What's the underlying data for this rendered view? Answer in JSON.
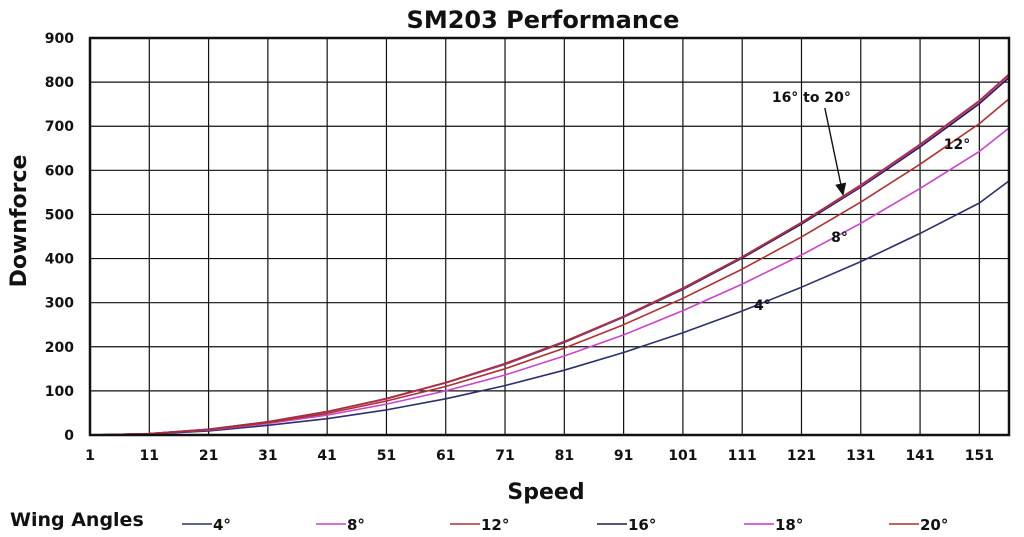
{
  "chart_data": {
    "type": "line",
    "title": "SM203 Performance",
    "xlabel": "Speed",
    "ylabel": "Downforce",
    "xlim": [
      1,
      156
    ],
    "ylim": [
      0,
      900
    ],
    "grid": true,
    "x_ticks": [
      "1",
      "11",
      "21",
      "31",
      "41",
      "51",
      "61",
      "71",
      "81",
      "91",
      "101",
      "111",
      "121",
      "131",
      "141",
      "151"
    ],
    "y_ticks": [
      "0",
      "100",
      "200",
      "300",
      "400",
      "500",
      "600",
      "700",
      "800",
      "900"
    ],
    "legend_title": "Wing Angles",
    "legend_position": "bottom",
    "x": [
      1,
      11,
      21,
      31,
      41,
      51,
      61,
      71,
      81,
      91,
      101,
      111,
      121,
      131,
      141,
      151,
      156
    ],
    "series": [
      {
        "name": "4°",
        "color": "#2b2f6b",
        "values": [
          0,
          2,
          9,
          22,
          37,
          57,
          82,
          112,
          147,
          187,
          232,
          281,
          335,
          393,
          457,
          526,
          576
        ]
      },
      {
        "name": "8°",
        "color": "#cc44cc",
        "values": [
          0,
          3,
          11,
          26,
          45,
          70,
          100,
          136,
          179,
          227,
          282,
          342,
          408,
          480,
          559,
          643,
          696
        ]
      },
      {
        "name": "12°",
        "color": "#b03030",
        "values": [
          0,
          3,
          12,
          28,
          49,
          77,
          110,
          150,
          197,
          250,
          310,
          376,
          449,
          528,
          614,
          706,
          762
        ]
      },
      {
        "name": "16°",
        "color": "#1c1c50",
        "values": [
          0,
          3,
          13,
          30,
          53,
          82,
          118,
          160,
          210,
          267,
          330,
          401,
          478,
          562,
          653,
          751,
          810
        ]
      },
      {
        "name": "18°",
        "color": "#cc33cc",
        "values": [
          0,
          3,
          13,
          30,
          53,
          82,
          118,
          161,
          211,
          268,
          332,
          403,
          481,
          565,
          657,
          756,
          815
        ]
      },
      {
        "name": "20°",
        "color": "#a83030",
        "values": [
          0,
          3,
          13,
          30,
          53,
          83,
          119,
          162,
          212,
          269,
          333,
          404,
          482,
          567,
          659,
          758,
          818
        ]
      }
    ],
    "annotations": [
      {
        "text": "16° to 20°",
        "x": 116,
        "y": 755,
        "arrow_to": [
          128,
          545
        ]
      },
      {
        "text": "12°",
        "x": 145,
        "y": 648
      },
      {
        "text": "8°",
        "x": 126,
        "y": 438
      },
      {
        "text": "4°",
        "x": 113,
        "y": 283
      }
    ]
  }
}
